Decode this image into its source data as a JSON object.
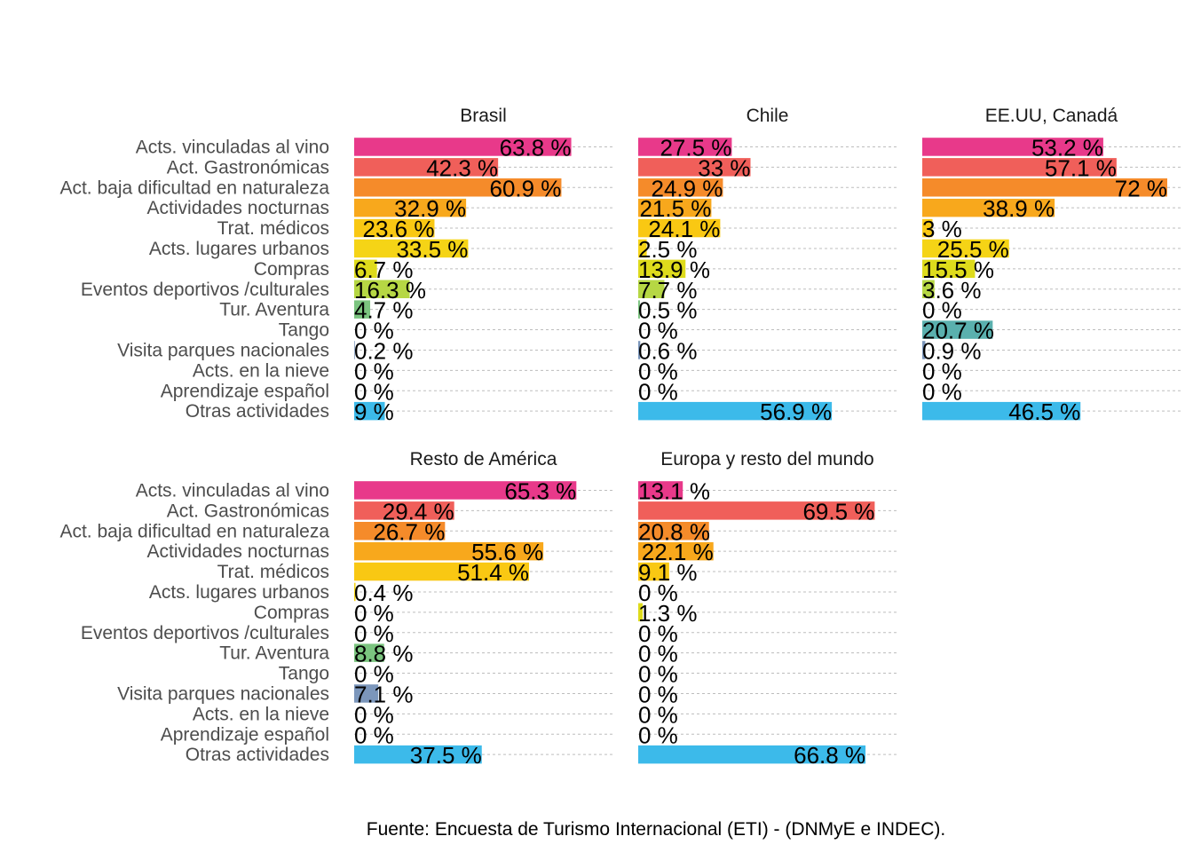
{
  "chart_data": {
    "type": "bar",
    "orientation": "horizontal",
    "categories": [
      "Acts. vinculadas al vino",
      "Act. Gastronómicas",
      "Act. baja dificultad en naturaleza",
      "Actividades nocturnas",
      "Trat. médicos",
      "Acts. lugares urbanos",
      "Compras",
      "Eventos deportivos /culturales",
      "Tur. Aventura",
      "Tango",
      "Visita parques nacionales",
      "Acts. en la nieve",
      "Aprendizaje español",
      "Otras actividades"
    ],
    "category_colors": [
      "#e8398a",
      "#f05f5a",
      "#f58b2a",
      "#f8a81c",
      "#f9c813",
      "#f5d416",
      "#dedb1c",
      "#b6d744",
      "#7bc47f",
      "#5ab0ae",
      "#7b96bb",
      "#4aa8d8",
      "#3cb4e4",
      "#3cbaea"
    ],
    "value_suffix": " %",
    "xlim": [
      0,
      72
    ],
    "grid": true,
    "panels": [
      {
        "name": "Brasil",
        "values": [
          63.8,
          42.3,
          60.9,
          32.9,
          23.6,
          33.5,
          6.7,
          16.3,
          4.7,
          0,
          0.2,
          0,
          0,
          9
        ],
        "labels": [
          "63.8 %",
          "42.3 %",
          "60.9 %",
          "32.9 %",
          "23.6 %",
          "33.5 %",
          "6.7 %",
          "16.3 %",
          "4.7 %",
          "0 %",
          "0.2 %",
          "0 %",
          "0 %",
          "9 %"
        ]
      },
      {
        "name": "Chile",
        "values": [
          27.5,
          33,
          24.9,
          21.5,
          24.1,
          2.5,
          13.9,
          7.7,
          0.5,
          0,
          0.6,
          0,
          0,
          56.9
        ],
        "labels": [
          "27.5 %",
          "33 %",
          "24.9 %",
          "21.5 %",
          "24.1 %",
          "2.5 %",
          "13.9 %",
          "7.7 %",
          "0.5 %",
          "0 %",
          "0.6 %",
          "0 %",
          "0 %",
          "56.9 %"
        ]
      },
      {
        "name": "EE.UU, Canadá",
        "values": [
          53.2,
          57.1,
          72,
          38.9,
          3,
          25.5,
          15.5,
          3.6,
          0,
          20.7,
          0.9,
          0,
          0,
          46.5
        ],
        "labels": [
          "53.2 %",
          "57.1 %",
          "72 %",
          "38.9 %",
          "3 %",
          "25.5 %",
          "15.5 %",
          "3.6 %",
          "0 %",
          "20.7 %",
          "0.9 %",
          "0 %",
          "0 %",
          "46.5 %"
        ]
      },
      {
        "name": "Resto de América",
        "values": [
          65.3,
          29.4,
          26.7,
          55.6,
          51.4,
          0.4,
          0,
          0,
          8.8,
          0,
          7.1,
          0,
          0,
          37.5
        ],
        "labels": [
          "65.3 %",
          "29.4 %",
          "26.7 %",
          "55.6 %",
          "51.4 %",
          "0.4 %",
          "0 %",
          "0 %",
          "8.8 %",
          "0 %",
          "7.1 %",
          "0 %",
          "0 %",
          "37.5 %"
        ]
      },
      {
        "name": "Europa y resto del mundo",
        "values": [
          13.1,
          69.5,
          20.8,
          22.1,
          9.1,
          0,
          1.3,
          0,
          0,
          0,
          0,
          0,
          0,
          66.8
        ],
        "labels": [
          "13.1 %",
          "69.5 %",
          "20.8 %",
          "22.1 %",
          "9.1 %",
          "0 %",
          "1.3 %",
          "0 %",
          "0 %",
          "0 %",
          "0 %",
          "0 %",
          "0 %",
          "66.8 %"
        ]
      }
    ],
    "caption": "Fuente: Encuesta de Turismo Internacional (ETI) - (DNMyE e INDEC)."
  }
}
